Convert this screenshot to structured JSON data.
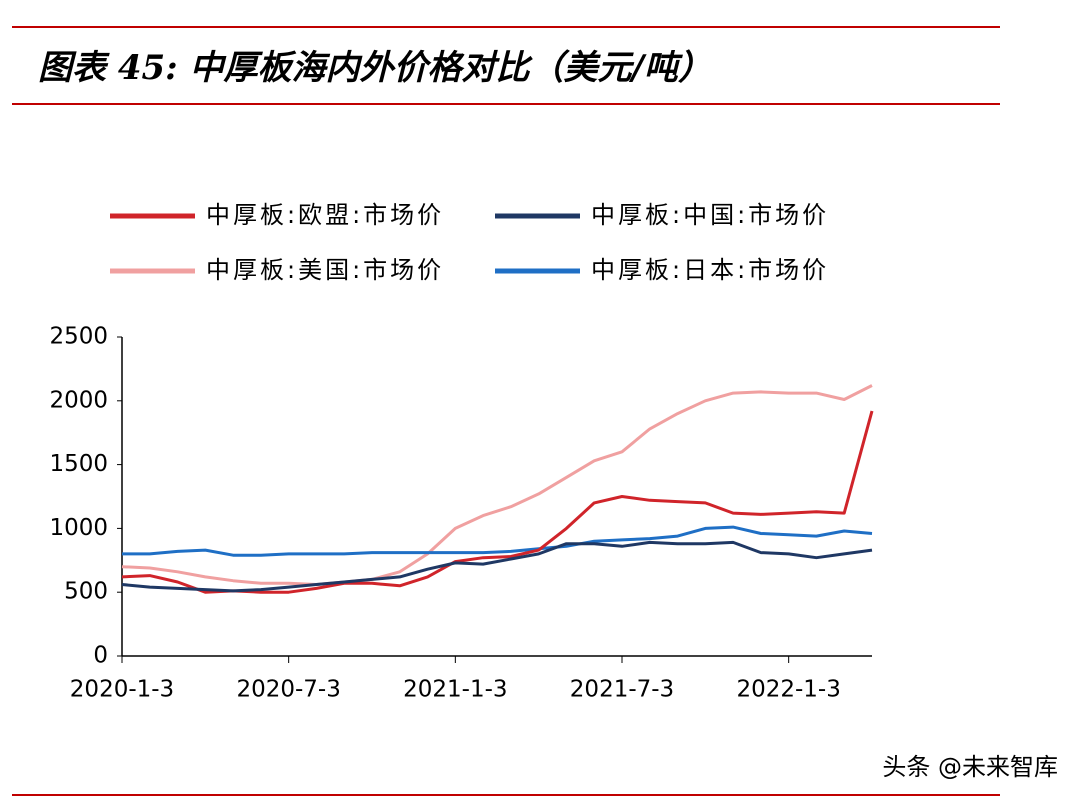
{
  "header": {
    "title": "图表 45: 中厚板海内外价格对比（美元/吨）"
  },
  "chart_data": {
    "type": "line",
    "categories": [
      "2020-1-3",
      null,
      null,
      null,
      null,
      null,
      "2020-7-3",
      null,
      null,
      null,
      null,
      null,
      "2021-1-3",
      null,
      null,
      null,
      null,
      null,
      "2021-7-3",
      null,
      null,
      null,
      null,
      null,
      "2022-1-3",
      null,
      null,
      null
    ],
    "series": [
      {
        "name": "中厚板:欧盟:市场价",
        "color": "#d0242a",
        "values": [
          620,
          630,
          580,
          500,
          510,
          500,
          500,
          530,
          570,
          570,
          550,
          620,
          740,
          770,
          780,
          830,
          1000,
          1200,
          1250,
          1220,
          1210,
          1200,
          1120,
          1110,
          1120,
          1130,
          1120,
          1920
        ]
      },
      {
        "name": "中厚板:中国:市场价",
        "color": "#1f3864",
        "values": [
          560,
          540,
          530,
          520,
          510,
          520,
          540,
          560,
          580,
          600,
          620,
          680,
          730,
          720,
          760,
          800,
          880,
          880,
          860,
          890,
          880,
          880,
          890,
          810,
          800,
          770,
          800,
          830
        ]
      },
      {
        "name": "中厚板:美国:市场价",
        "color": "#f0a0a0",
        "values": [
          700,
          690,
          660,
          620,
          590,
          570,
          570,
          560,
          580,
          600,
          660,
          800,
          1000,
          1100,
          1170,
          1270,
          1400,
          1530,
          1600,
          1780,
          1900,
          2000,
          2060,
          2070,
          2060,
          2060,
          2010,
          2120
        ]
      },
      {
        "name": "中厚板:日本:市场价",
        "color": "#1f6fc5",
        "values": [
          800,
          800,
          820,
          830,
          790,
          790,
          800,
          800,
          800,
          810,
          810,
          810,
          810,
          810,
          820,
          840,
          860,
          900,
          910,
          920,
          940,
          1000,
          1010,
          960,
          950,
          940,
          980,
          960
        ]
      }
    ],
    "ylim": [
      0,
      2500
    ],
    "yticks": [
      0,
      500,
      1000,
      1500,
      2000,
      2500
    ],
    "grid": false
  },
  "watermark": "头条 @未来智库"
}
